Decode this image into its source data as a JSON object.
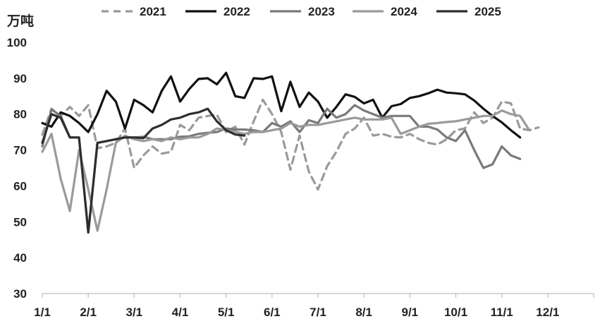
{
  "chart_data": {
    "type": "line",
    "unit_label": "万吨",
    "ylim": [
      30,
      100
    ],
    "yticks": [
      30,
      40,
      50,
      60,
      70,
      80,
      90,
      100
    ],
    "x_tick_labels": [
      "1/1",
      "2/1",
      "3/1",
      "4/1",
      "5/1",
      "6/1",
      "7/1",
      "8/1",
      "9/1",
      "10/1",
      "11/1",
      "12/1"
    ],
    "x_count": 61,
    "grid": false,
    "legend_position": "top",
    "series": [
      {
        "name": "2021",
        "color": "#9a9a9a",
        "dash": "dashed",
        "values": [
          74.3,
          81.5,
          79.5,
          82,
          79.5,
          82.5,
          70.5,
          71,
          72,
          76,
          65,
          68.5,
          71,
          69,
          69.5,
          77,
          75.5,
          79,
          79.5,
          79.8,
          75,
          76.5,
          71.5,
          78,
          84,
          80,
          75,
          64.5,
          74,
          64,
          59,
          65.5,
          69.5,
          74.5,
          76,
          79,
          74,
          74.5,
          73.7,
          73.5,
          74.5,
          73,
          72,
          71.5,
          73,
          75.5,
          76,
          80.5,
          77.5,
          79,
          83.5,
          83,
          76,
          75.5,
          76.3
        ]
      },
      {
        "name": "2022",
        "color": "#111111",
        "dash": "solid",
        "values": [
          77.5,
          76.5,
          80.5,
          79.5,
          77.5,
          75,
          80,
          86.5,
          83.5,
          76,
          84,
          82.5,
          80.5,
          86.5,
          90.5,
          83.5,
          87,
          89.8,
          90,
          88.3,
          91.5,
          85,
          84.5,
          90,
          89.8,
          90.5,
          80.8,
          89,
          82,
          86,
          83.5,
          79,
          82,
          85.5,
          84.8,
          83,
          84,
          79,
          82.2,
          82.8,
          84.5,
          85,
          85.8,
          86.8,
          86,
          85.8,
          85.5,
          83.8,
          81.5,
          79.5,
          77.7,
          75.5,
          73.5
        ]
      },
      {
        "name": "2023",
        "color": "#7a7a7a",
        "dash": "solid",
        "values": [
          71,
          81.3,
          79.5,
          73.5,
          73.5,
          47,
          72,
          72.5,
          73,
          73.5,
          73.5,
          73.7,
          73,
          73,
          73,
          73.7,
          73.8,
          74.5,
          74.8,
          75,
          76,
          75.7,
          75.7,
          75.5,
          75,
          77.5,
          76.5,
          78,
          75,
          78.3,
          77.5,
          81.5,
          79,
          80,
          82.5,
          81,
          80,
          79,
          79.5,
          79.5,
          79.5,
          76.5,
          76.5,
          75.7,
          73.5,
          72.5,
          75.5,
          70,
          65,
          66,
          71,
          68.5,
          67.5
        ]
      },
      {
        "name": "2024",
        "color": "#9a9a9a",
        "dash": "solid",
        "values": [
          69.5,
          74.5,
          62,
          53,
          70,
          59,
          47.5,
          59,
          72,
          74,
          73,
          72.5,
          73,
          72.5,
          73.5,
          73,
          73.5,
          73.5,
          74.5,
          76,
          75.5,
          75,
          74.5,
          75,
          75,
          75.5,
          76,
          77.5,
          76.5,
          77,
          77,
          77.5,
          78,
          78.5,
          79,
          78.5,
          78.5,
          78.5,
          79,
          74.5,
          75.5,
          76.5,
          77.3,
          77.5,
          77.8,
          78,
          78.5,
          79,
          79.5,
          79.5,
          81,
          80,
          79.5,
          75.5
        ]
      },
      {
        "name": "2025",
        "color": "#2e2e2e",
        "dash": "solid",
        "values": [
          72,
          80,
          79,
          73.5,
          73.5,
          47,
          72,
          72.5,
          73,
          73.5,
          73.5,
          73.3,
          76,
          77,
          78.5,
          79,
          80,
          80.5,
          81.5,
          78,
          75.5,
          74.3,
          74
        ]
      }
    ]
  }
}
